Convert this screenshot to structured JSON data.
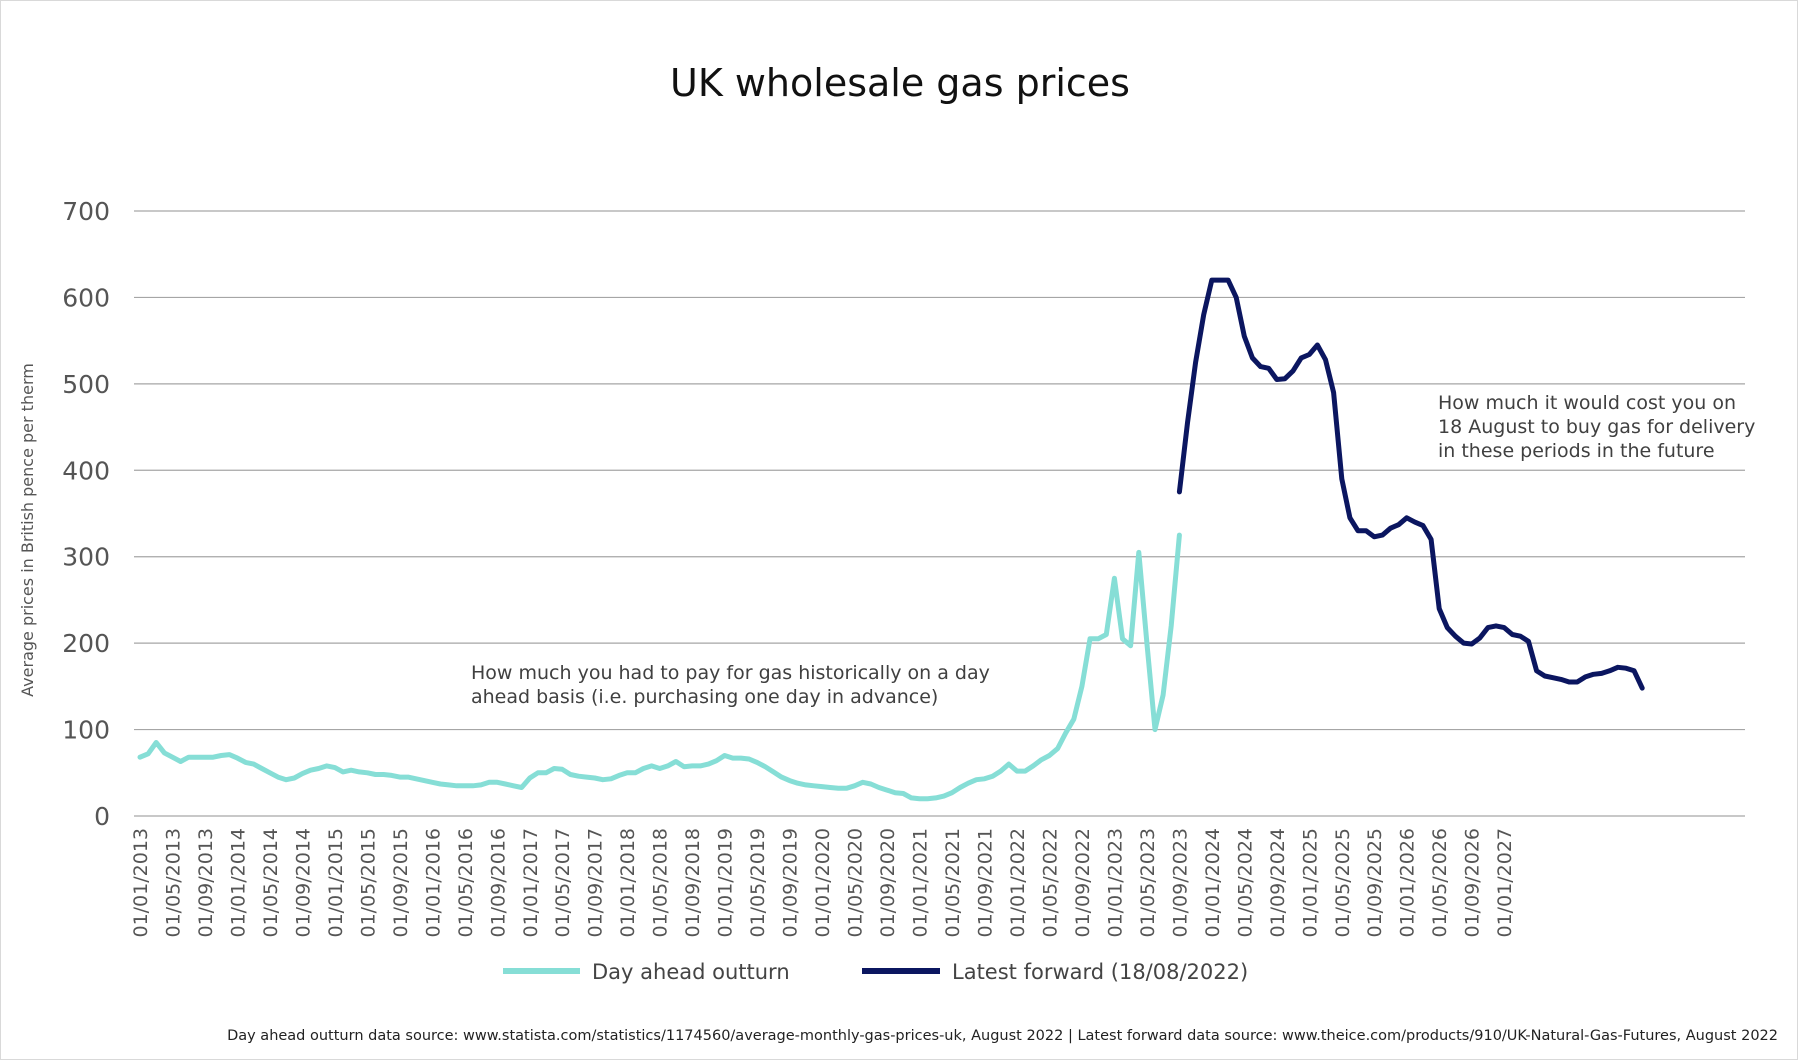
{
  "chart_data": {
    "type": "line",
    "title": "UK wholesale gas prices",
    "xlabel": "",
    "ylabel": "Average prices in British pence per therm",
    "ylim": [
      0,
      700
    ],
    "yticks": [
      0,
      100,
      200,
      300,
      400,
      500,
      600,
      700
    ],
    "grid": true,
    "x_start": "01/01/2013",
    "x_step_months": 1,
    "x_tick_every_months": 4,
    "x_tick_labels": [
      "01/01/2013",
      "01/05/2013",
      "01/09/2013",
      "01/01/2014",
      "01/05/2014",
      "01/09/2014",
      "01/01/2015",
      "01/05/2015",
      "01/09/2015",
      "01/01/2016",
      "01/05/2016",
      "01/09/2016",
      "01/01/2017",
      "01/05/2017",
      "01/09/2017",
      "01/01/2018",
      "01/05/2018",
      "01/09/2018",
      "01/01/2019",
      "01/05/2019",
      "01/09/2019",
      "01/01/2020",
      "01/05/2020",
      "01/09/2020",
      "01/01/2021",
      "01/05/2021",
      "01/09/2021",
      "01/01/2022",
      "01/05/2022",
      "01/09/2022",
      "01/01/2023",
      "01/05/2023",
      "01/09/2023",
      "01/01/2024",
      "01/05/2024",
      "01/09/2024",
      "01/01/2025",
      "01/05/2025",
      "01/09/2025",
      "01/01/2026",
      "01/05/2026",
      "01/09/2026",
      "01/01/2027"
    ],
    "series": [
      {
        "name": "Day ahead outturn",
        "color": "#86ded6",
        "start_index": 0,
        "values": [
          68,
          72,
          85,
          73,
          68,
          63,
          68,
          68,
          68,
          68,
          70,
          71,
          67,
          62,
          60,
          55,
          50,
          45,
          42,
          44,
          49,
          53,
          55,
          58,
          56,
          51,
          53,
          51,
          50,
          48,
          48,
          47,
          45,
          45,
          43,
          41,
          39,
          37,
          36,
          35,
          35,
          35,
          36,
          39,
          39,
          37,
          35,
          33,
          44,
          50,
          50,
          55,
          54,
          48,
          46,
          45,
          44,
          42,
          43,
          47,
          50,
          50,
          55,
          58,
          55,
          58,
          63,
          57,
          58,
          58,
          60,
          64,
          70,
          67,
          67,
          66,
          62,
          57,
          51,
          45,
          41,
          38,
          36,
          35,
          34,
          33,
          32,
          32,
          35,
          39,
          37,
          33,
          30,
          27,
          26,
          21,
          20,
          20,
          21,
          23,
          27,
          33,
          38,
          42,
          43,
          46,
          52,
          60,
          52,
          52,
          58,
          65,
          70,
          78,
          96,
          112,
          150,
          205,
          205,
          210,
          275,
          205,
          197,
          305,
          200,
          100,
          140,
          220,
          325
        ]
      },
      {
        "name": "Latest forward (18/08/2022)",
        "color": "#0b1660",
        "start_index": 128,
        "values": [
          375,
          455,
          525,
          580,
          620,
          620,
          620,
          600,
          555,
          530,
          520,
          518,
          505,
          506,
          515,
          530,
          534,
          545,
          528,
          490,
          390,
          345,
          330,
          330,
          323,
          325,
          333,
          337,
          345,
          340,
          336,
          320,
          240,
          218,
          208,
          200,
          199,
          206,
          218,
          220,
          218,
          210,
          208,
          202,
          168,
          162,
          160,
          158,
          155,
          155,
          161,
          164,
          165,
          168,
          172,
          171,
          168,
          148
        ]
      }
    ],
    "annotations": [
      {
        "text_lines": [
          "How much you had to pay for gas historically on a day",
          "ahead basis (i.e. purchasing one day in advance)"
        ]
      },
      {
        "text_lines": [
          "How much it would cost you on",
          "18 August to buy gas for delivery",
          "in these periods in the future"
        ]
      }
    ],
    "legend": [
      "Day ahead outturn",
      "Latest forward (18/08/2022)"
    ],
    "legend_position": "bottom-center"
  },
  "source_note": "Day ahead outturn data source: www.statista.com/statistics/1174560/average-monthly-gas-prices-uk, August 2022 | Latest forward data source: www.theice.com/products/910/UK-Natural-Gas-Futures, August 2022"
}
